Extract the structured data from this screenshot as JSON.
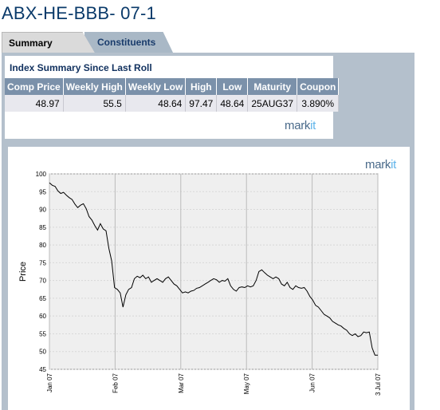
{
  "page": {
    "title": "ABX-HE-BBB- 07-1"
  },
  "tabs": [
    {
      "label": "Summary",
      "active": true
    },
    {
      "label": "Constituents",
      "active": false
    }
  ],
  "summary": {
    "title": "Index Summary Since Last Roll",
    "headers": [
      "Comp Price",
      "Weekly High",
      "Weekly Low",
      "High",
      "Low",
      "Maturity",
      "Coupon"
    ],
    "values": [
      "48.97",
      "55.5",
      "48.64",
      "97.47",
      "48.64",
      "25AUG37",
      "3.890%"
    ],
    "logo": {
      "mark": "mark",
      "it": "it"
    }
  },
  "chart_logo": {
    "mark": "mark",
    "it": "it"
  },
  "colors": {
    "header_bg": "#7b91aa",
    "panel_bg": "#b4c0cc",
    "plot_bg": "#efefef",
    "title": "#0a3a6a"
  },
  "chart_data": {
    "type": "line",
    "ylabel": "Price",
    "xlabel": "",
    "ylim": [
      45,
      100
    ],
    "yticks": [
      45,
      50,
      55,
      60,
      65,
      70,
      75,
      80,
      85,
      90,
      95,
      100
    ],
    "xticks": [
      "Jan 07",
      "Feb 07",
      "Mar 07",
      "May 07",
      "Jun 07",
      "3 Jul 07"
    ],
    "grid": true,
    "series": [
      {
        "values": [
          97.5,
          96.8,
          96.5,
          95.2,
          94.5,
          94.8,
          94.0,
          93.3,
          92.8,
          91.5,
          90.5,
          91.2,
          91.6,
          90.2,
          88.0,
          87.0,
          85.5,
          84.2,
          86.0,
          84.5,
          84.0,
          79.0,
          75.5,
          68.0,
          67.5,
          66.5,
          62.5,
          66.0,
          67.5,
          68.0,
          70.5,
          71.2,
          70.8,
          71.5,
          70.5,
          71.0,
          69.5,
          70.0,
          70.5,
          70.0,
          69.5,
          70.5,
          71.0,
          70.0,
          69.0,
          68.5,
          67.5,
          66.5,
          66.8,
          66.5,
          67.0,
          67.2,
          67.8,
          68.0,
          68.5,
          69.0,
          69.5,
          70.0,
          70.5,
          70.2,
          69.5,
          70.0,
          69.8,
          70.5,
          68.5,
          67.5,
          67.0,
          68.0,
          68.2,
          68.0,
          68.5,
          68.2,
          68.5,
          70.0,
          72.5,
          73.0,
          72.2,
          71.5,
          71.0,
          70.5,
          71.0,
          70.5,
          69.0,
          68.5,
          69.5,
          68.0,
          67.5,
          68.5,
          68.0,
          67.8,
          68.0,
          67.0,
          65.5,
          64.5,
          63.0,
          62.5,
          61.5,
          60.5,
          60.0,
          59.5,
          58.5,
          58.0,
          57.5,
          57.2,
          56.5,
          56.0,
          55.0,
          54.5,
          55.0,
          54.2,
          54.5,
          55.5,
          55.3,
          55.5,
          51.0,
          49.0,
          48.97
        ]
      }
    ]
  }
}
